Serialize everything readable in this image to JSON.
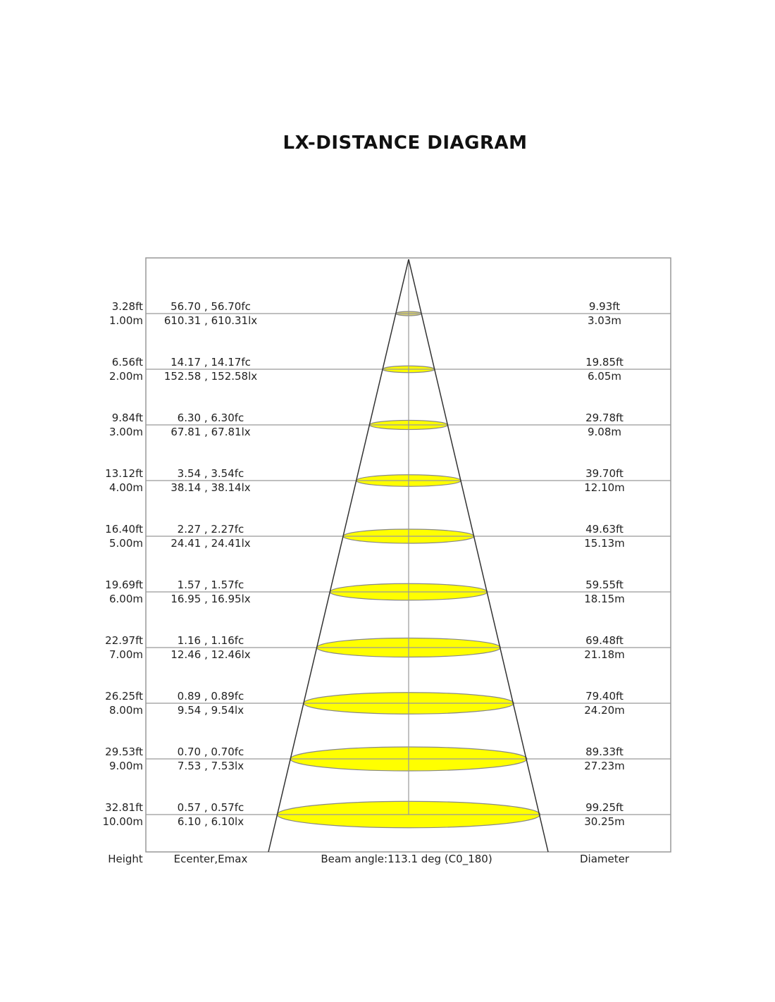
{
  "title": "LX-DISTANCE DIAGRAM",
  "footer": {
    "height_label": "Height",
    "ecenter_label": "Ecenter,Emax",
    "beam_label": "Beam angle:113.1 deg (C0_180)",
    "diameter_label": "Diameter"
  },
  "colors": {
    "spot_fill": "#ffff00",
    "frame": "#999999",
    "cone": "#333333"
  },
  "rows": [
    {
      "ft": "3.28ft",
      "m": "1.00m",
      "fc": "56.70 , 56.70fc",
      "lx": "610.31 , 610.31lx",
      "dia_ft": "9.93ft",
      "dia_m": "3.03m"
    },
    {
      "ft": "6.56ft",
      "m": "2.00m",
      "fc": "14.17 , 14.17fc",
      "lx": "152.58 , 152.58lx",
      "dia_ft": "19.85ft",
      "dia_m": "6.05m"
    },
    {
      "ft": "9.84ft",
      "m": "3.00m",
      "fc": "6.30 , 6.30fc",
      "lx": "67.81 , 67.81lx",
      "dia_ft": "29.78ft",
      "dia_m": "9.08m"
    },
    {
      "ft": "13.12ft",
      "m": "4.00m",
      "fc": "3.54 , 3.54fc",
      "lx": "38.14 , 38.14lx",
      "dia_ft": "39.70ft",
      "dia_m": "12.10m"
    },
    {
      "ft": "16.40ft",
      "m": "5.00m",
      "fc": "2.27 , 2.27fc",
      "lx": "24.41 , 24.41lx",
      "dia_ft": "49.63ft",
      "dia_m": "15.13m"
    },
    {
      "ft": "19.69ft",
      "m": "6.00m",
      "fc": "1.57 , 1.57fc",
      "lx": "16.95 , 16.95lx",
      "dia_ft": "59.55ft",
      "dia_m": "18.15m"
    },
    {
      "ft": "22.97ft",
      "m": "7.00m",
      "fc": "1.16 , 1.16fc",
      "lx": "12.46 , 12.46lx",
      "dia_ft": "69.48ft",
      "dia_m": "21.18m"
    },
    {
      "ft": "26.25ft",
      "m": "8.00m",
      "fc": "0.89 , 0.89fc",
      "lx": "9.54 , 9.54lx",
      "dia_ft": "79.40ft",
      "dia_m": "24.20m"
    },
    {
      "ft": "29.53ft",
      "m": "9.00m",
      "fc": "0.70 , 0.70fc",
      "lx": "7.53 , 7.53lx",
      "dia_ft": "89.33ft",
      "dia_m": "27.23m"
    },
    {
      "ft": "32.81ft",
      "m": "10.00m",
      "fc": "0.57 , 0.57fc",
      "lx": "6.10 , 6.10lx",
      "dia_ft": "99.25ft",
      "dia_m": "30.25m"
    }
  ]
}
